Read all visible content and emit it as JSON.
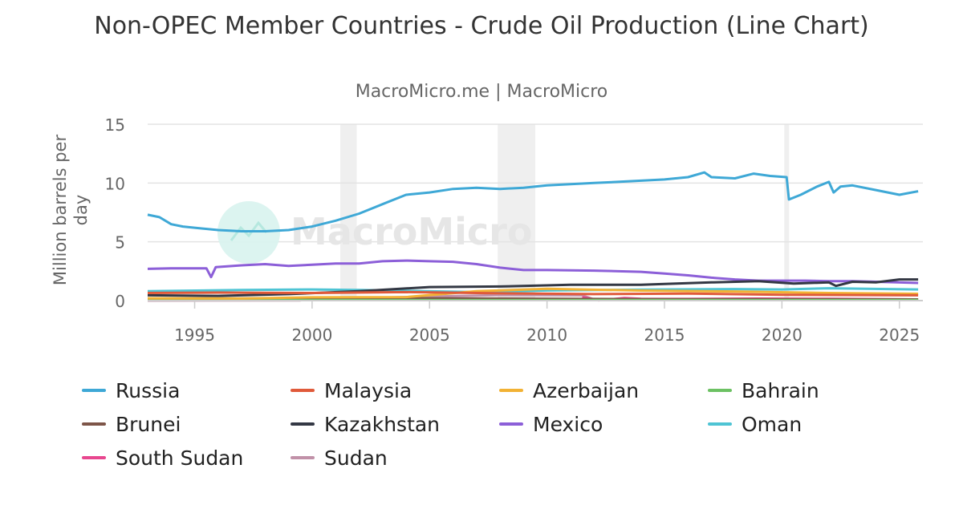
{
  "header": {
    "title": "Non-OPEC Member Countries - Crude Oil Production (Line Chart)",
    "subtitle": "MacroMicro.me | MacroMicro"
  },
  "watermark": {
    "text": "MacroMicro"
  },
  "chart_data": {
    "type": "line",
    "title": "Non-OPEC Member Countries - Crude Oil Production (Line Chart)",
    "subtitle": "MacroMicro.me | MacroMicro",
    "ylabel": "Million barrels per day",
    "xlabel": "",
    "xlim": [
      1993.0,
      2026.0
    ],
    "ylim": [
      0,
      15
    ],
    "x_ticks": [
      1995,
      2000,
      2005,
      2010,
      2015,
      2020,
      2025
    ],
    "y_ticks": [
      0,
      5,
      10,
      15
    ],
    "grid": true,
    "legend_position": "bottom",
    "shaded_periods": [
      [
        2001.2,
        2001.9
      ],
      [
        2007.9,
        2009.5
      ],
      [
        2020.1,
        2020.3
      ]
    ],
    "series": [
      {
        "name": "Russia",
        "color": "#3ea8d6",
        "points": [
          [
            1993.0,
            7.3
          ],
          [
            1993.5,
            7.1
          ],
          [
            1994.0,
            6.5
          ],
          [
            1994.5,
            6.3
          ],
          [
            1995.0,
            6.2
          ],
          [
            1996.0,
            6.0
          ],
          [
            1997.0,
            5.9
          ],
          [
            1998.0,
            5.9
          ],
          [
            1999.0,
            6.0
          ],
          [
            2000.0,
            6.3
          ],
          [
            2001.0,
            6.8
          ],
          [
            2002.0,
            7.4
          ],
          [
            2003.0,
            8.2
          ],
          [
            2004.0,
            9.0
          ],
          [
            2005.0,
            9.2
          ],
          [
            2006.0,
            9.5
          ],
          [
            2007.0,
            9.6
          ],
          [
            2008.0,
            9.5
          ],
          [
            2009.0,
            9.6
          ],
          [
            2010.0,
            9.8
          ],
          [
            2011.0,
            9.9
          ],
          [
            2012.0,
            10.0
          ],
          [
            2013.0,
            10.1
          ],
          [
            2014.0,
            10.2
          ],
          [
            2015.0,
            10.3
          ],
          [
            2016.0,
            10.5
          ],
          [
            2016.7,
            10.9
          ],
          [
            2017.0,
            10.5
          ],
          [
            2018.0,
            10.4
          ],
          [
            2018.8,
            10.8
          ],
          [
            2019.5,
            10.6
          ],
          [
            2020.2,
            10.5
          ],
          [
            2020.3,
            8.6
          ],
          [
            2020.8,
            9.0
          ],
          [
            2021.5,
            9.7
          ],
          [
            2022.0,
            10.1
          ],
          [
            2022.2,
            9.2
          ],
          [
            2022.5,
            9.7
          ],
          [
            2023.0,
            9.8
          ],
          [
            2024.0,
            9.4
          ],
          [
            2025.0,
            9.0
          ],
          [
            2025.8,
            9.3
          ]
        ]
      },
      {
        "name": "Malaysia",
        "color": "#e05a3a",
        "points": [
          [
            1993.0,
            0.65
          ],
          [
            1996.0,
            0.68
          ],
          [
            2000.0,
            0.65
          ],
          [
            2004.0,
            0.72
          ],
          [
            2008.0,
            0.62
          ],
          [
            2012.0,
            0.55
          ],
          [
            2016.0,
            0.6
          ],
          [
            2020.0,
            0.5
          ],
          [
            2025.8,
            0.45
          ]
        ]
      },
      {
        "name": "Azerbaijan",
        "color": "#f2b234",
        "points": [
          [
            1993.0,
            0.2
          ],
          [
            1997.0,
            0.18
          ],
          [
            2000.0,
            0.28
          ],
          [
            2004.0,
            0.3
          ],
          [
            2007.0,
            0.8
          ],
          [
            2010.0,
            1.0
          ],
          [
            2014.0,
            0.85
          ],
          [
            2018.0,
            0.78
          ],
          [
            2022.0,
            0.65
          ],
          [
            2025.8,
            0.58
          ]
        ]
      },
      {
        "name": "Bahrain",
        "color": "#6cc163",
        "points": [
          [
            1993.0,
            0.04
          ],
          [
            2025.8,
            0.04
          ]
        ]
      },
      {
        "name": "Brunei",
        "color": "#7d5548",
        "points": [
          [
            1993.0,
            0.17
          ],
          [
            2005.0,
            0.2
          ],
          [
            2015.0,
            0.12
          ],
          [
            2025.8,
            0.1
          ]
        ]
      },
      {
        "name": "Kazakhstan",
        "color": "#333844",
        "points": [
          [
            1993.0,
            0.45
          ],
          [
            1996.0,
            0.4
          ],
          [
            1999.0,
            0.55
          ],
          [
            2002.0,
            0.8
          ],
          [
            2005.0,
            1.15
          ],
          [
            2008.0,
            1.2
          ],
          [
            2011.0,
            1.35
          ],
          [
            2014.0,
            1.35
          ],
          [
            2017.0,
            1.55
          ],
          [
            2019.0,
            1.65
          ],
          [
            2020.5,
            1.45
          ],
          [
            2022.0,
            1.55
          ],
          [
            2022.3,
            1.25
          ],
          [
            2023.0,
            1.6
          ],
          [
            2024.0,
            1.55
          ],
          [
            2025.0,
            1.8
          ],
          [
            2025.8,
            1.8
          ]
        ]
      },
      {
        "name": "Mexico",
        "color": "#8c5fd8",
        "points": [
          [
            1993.0,
            2.7
          ],
          [
            1994.0,
            2.75
          ],
          [
            1995.5,
            2.75
          ],
          [
            1995.7,
            2.0
          ],
          [
            1995.9,
            2.85
          ],
          [
            1997.0,
            3.0
          ],
          [
            1998.0,
            3.1
          ],
          [
            1999.0,
            2.95
          ],
          [
            2000.0,
            3.05
          ],
          [
            2001.0,
            3.15
          ],
          [
            2002.0,
            3.15
          ],
          [
            2003.0,
            3.35
          ],
          [
            2004.0,
            3.4
          ],
          [
            2005.0,
            3.35
          ],
          [
            2006.0,
            3.3
          ],
          [
            2007.0,
            3.1
          ],
          [
            2008.0,
            2.8
          ],
          [
            2009.0,
            2.6
          ],
          [
            2010.0,
            2.6
          ],
          [
            2012.0,
            2.55
          ],
          [
            2014.0,
            2.45
          ],
          [
            2015.0,
            2.3
          ],
          [
            2016.0,
            2.15
          ],
          [
            2017.0,
            1.95
          ],
          [
            2018.0,
            1.8
          ],
          [
            2019.0,
            1.7
          ],
          [
            2020.0,
            1.7
          ],
          [
            2021.0,
            1.7
          ],
          [
            2022.0,
            1.65
          ],
          [
            2023.0,
            1.65
          ],
          [
            2024.0,
            1.6
          ],
          [
            2025.8,
            1.5
          ]
        ]
      },
      {
        "name": "Oman",
        "color": "#4ec4d4",
        "points": [
          [
            1993.0,
            0.8
          ],
          [
            1997.0,
            0.9
          ],
          [
            2000.0,
            0.95
          ],
          [
            2002.0,
            0.9
          ],
          [
            2007.0,
            0.72
          ],
          [
            2010.0,
            0.86
          ],
          [
            2015.0,
            0.95
          ],
          [
            2018.0,
            0.98
          ],
          [
            2020.0,
            0.95
          ],
          [
            2022.0,
            1.05
          ],
          [
            2025.8,
            0.95
          ]
        ]
      },
      {
        "name": "South Sudan",
        "color": "#e8478f",
        "points": [
          [
            2011.5,
            0.3
          ],
          [
            2012.2,
            0.03
          ],
          [
            2013.3,
            0.22
          ],
          [
            2014.0,
            0.16
          ],
          [
            2016.0,
            0.14
          ],
          [
            2019.0,
            0.17
          ],
          [
            2022.0,
            0.15
          ],
          [
            2025.8,
            0.1
          ]
        ]
      },
      {
        "name": "Sudan",
        "color": "#c191a8",
        "points": [
          [
            1993.0,
            0.0
          ],
          [
            1999.5,
            0.02
          ],
          [
            2000.0,
            0.18
          ],
          [
            2003.0,
            0.26
          ],
          [
            2006.0,
            0.38
          ],
          [
            2008.0,
            0.47
          ],
          [
            2011.5,
            0.45
          ],
          [
            2012.0,
            0.1
          ],
          [
            2016.0,
            0.1
          ],
          [
            2025.8,
            0.06
          ]
        ]
      }
    ]
  }
}
